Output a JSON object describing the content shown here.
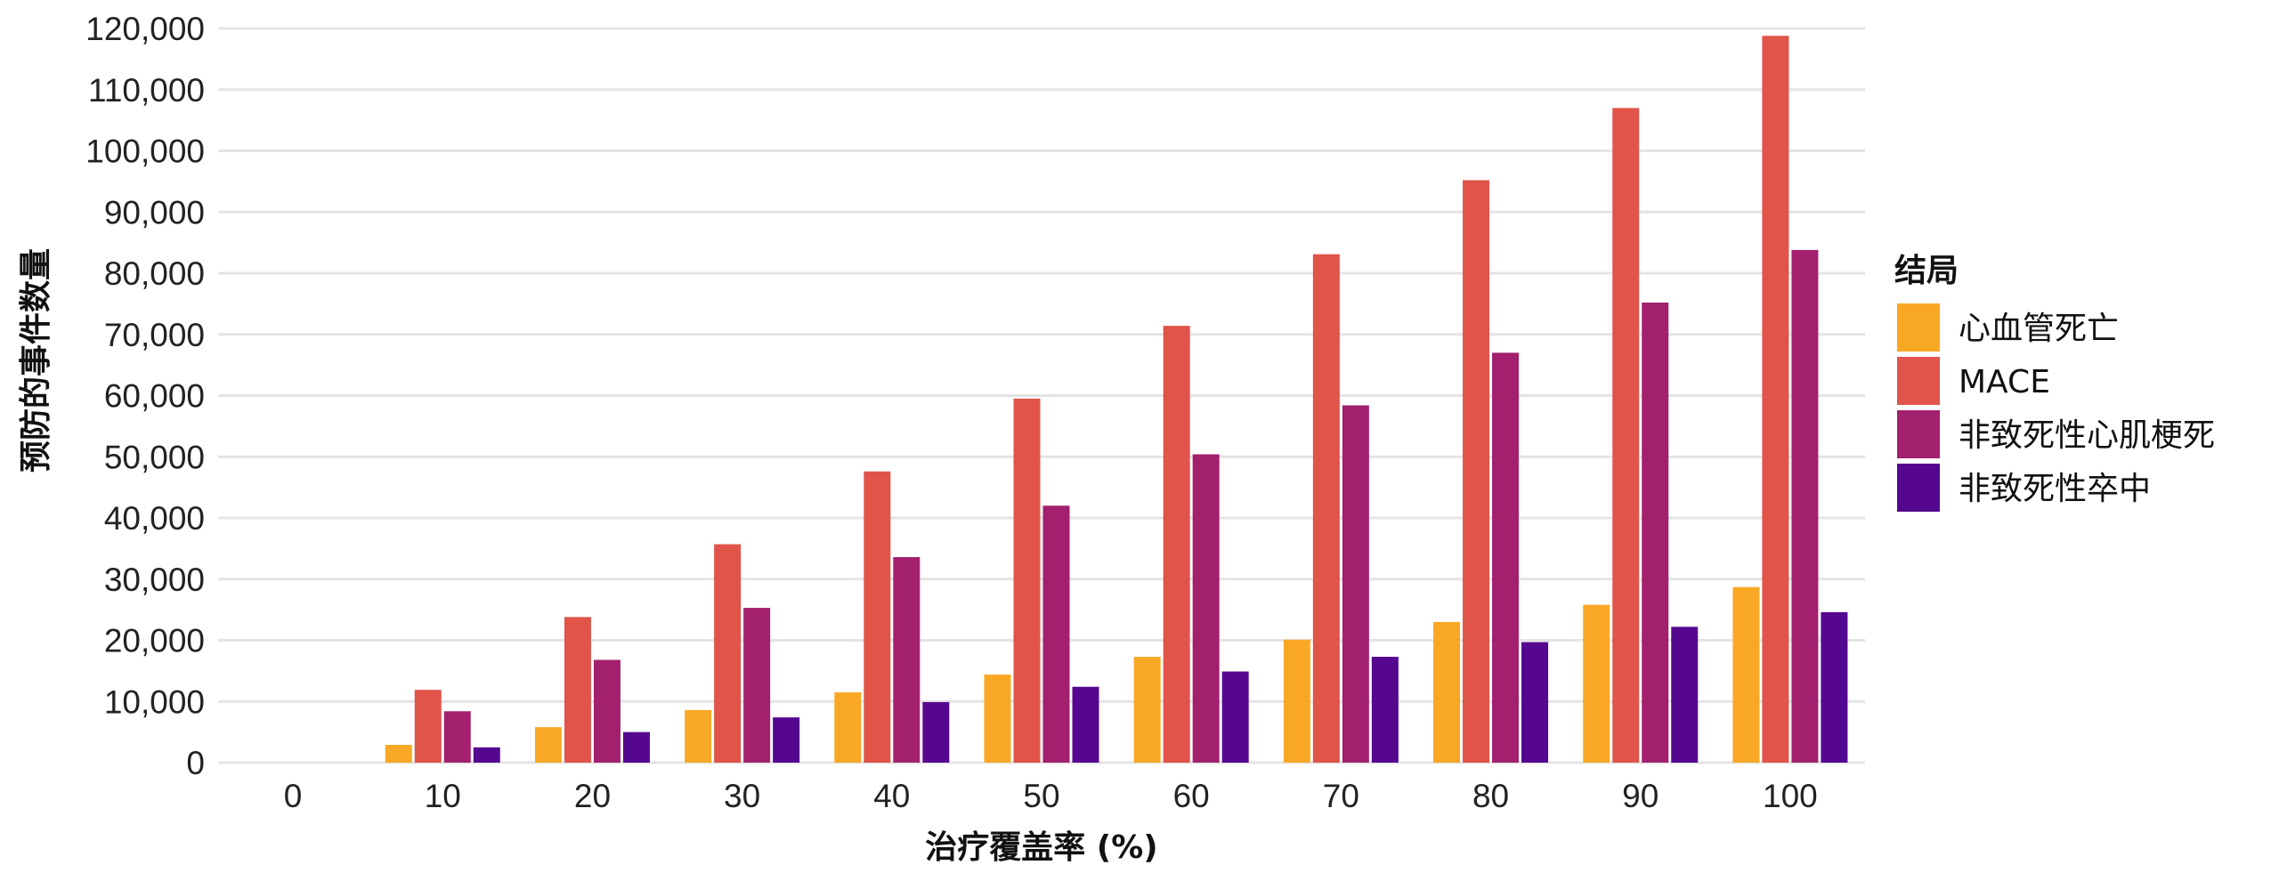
{
  "chart_data": {
    "type": "bar",
    "title": "",
    "xlabel": "治疗覆盖率 (%)",
    "ylabel": "预防的事件数量",
    "categories": [
      "0",
      "10",
      "20",
      "30",
      "40",
      "50",
      "60",
      "70",
      "80",
      "90",
      "100"
    ],
    "ylim": [
      0,
      120000
    ],
    "yticks": [
      0,
      10000,
      20000,
      30000,
      40000,
      50000,
      60000,
      70000,
      80000,
      90000,
      100000,
      110000,
      120000
    ],
    "ytick_labels": [
      "0",
      "10,000",
      "20,000",
      "30,000",
      "40,000",
      "50,000",
      "60,000",
      "70,000",
      "80,000",
      "90,000",
      "100,000",
      "110,000",
      "120,000"
    ],
    "grid": true,
    "legend": {
      "title": "结局",
      "placement": "right"
    },
    "series": [
      {
        "name": "心血管死亡",
        "color": "#F9A825",
        "values": [
          0,
          2900,
          5800,
          8600,
          11500,
          14400,
          17300,
          20100,
          23000,
          25800,
          28700
        ]
      },
      {
        "name": "MACE",
        "color": "#E0544A",
        "values": [
          0,
          11900,
          23800,
          35700,
          47600,
          59500,
          71400,
          83100,
          95200,
          107000,
          118800
        ]
      },
      {
        "name": "非致死性心肌梗死",
        "color": "#A3206E",
        "values": [
          0,
          8400,
          16800,
          25300,
          33600,
          42000,
          50400,
          58400,
          67000,
          75200,
          83800
        ]
      },
      {
        "name": "非致死性卒中",
        "color": "#55088F",
        "values": [
          0,
          2500,
          5000,
          7400,
          9900,
          12400,
          14900,
          17300,
          19700,
          22200,
          24600
        ]
      }
    ]
  }
}
